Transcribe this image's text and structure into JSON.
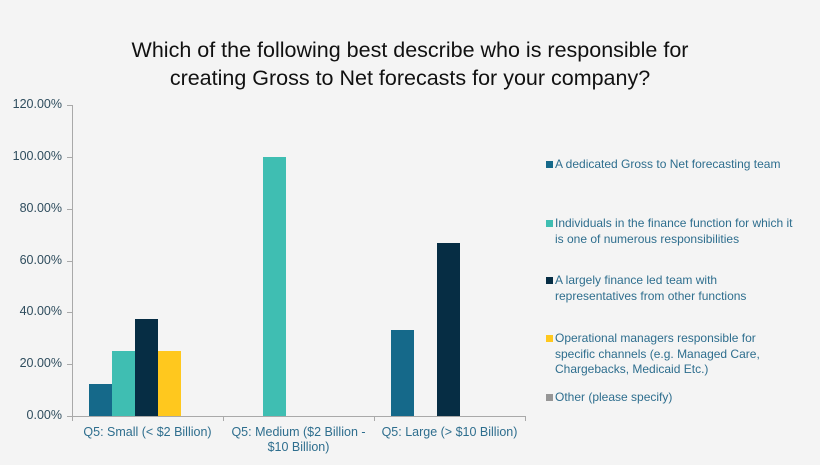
{
  "title": "Which of the following best describe who is responsible for creating Gross to Net forecasts for your company?",
  "title_lines": [
    "Which of the following best describe who is responsible for",
    "creating Gross to Net forecasts for your company?"
  ],
  "colors": {
    "background": "#f4f4f4",
    "series": [
      "#15698a",
      "#3fbeb2",
      "#062d44",
      "#ffc81e",
      "#969696"
    ],
    "label_text": "#2e6e8e",
    "axis": "#a9a9a9"
  },
  "y_ticks": [
    "0.00%",
    "20.00%",
    "40.00%",
    "60.00%",
    "80.00%",
    "100.00%",
    "120.00%"
  ],
  "x_labels": [
    "Q5: Small (< $2 Billion)",
    "Q5: Medium ($2 Billion - $10 Billion)",
    "Q5: Large (> $10 Billion)"
  ],
  "x_label_lines": [
    [
      "Q5: Small (< $2 Billion)"
    ],
    [
      "Q5: Medium ($2 Billion -",
      "$10 Billion)"
    ],
    [
      "Q5: Large (> $10 Billion)"
    ]
  ],
  "legend": [
    {
      "label": "A dedicated Gross to Net forecasting team",
      "lines": [
        "A dedicated Gross to Net forecasting team"
      ]
    },
    {
      "label": "Individuals in the finance function for which it is one of numerous responsibilities",
      "lines": [
        "Individuals in the finance function for which it",
        "is one of numerous responsibilities"
      ]
    },
    {
      "label": "A largely finance led team with representatives from other functions",
      "lines": [
        "A largely finance led team with",
        "representatives from other functions"
      ]
    },
    {
      "label": "Operational managers responsible for specific channels (e.g. Managed Care, Chargebacks, Medicaid Etc.)",
      "lines": [
        "Operational managers responsible for",
        "specific channels (e.g. Managed Care,",
        "Chargebacks, Medicaid Etc.)"
      ]
    },
    {
      "label": "Other (please specify)",
      "lines": [
        "Other (please specify)"
      ]
    }
  ],
  "chart_data": {
    "type": "bar",
    "title": "Which of the following best describe who is responsible for creating Gross to Net forecasts for your company?",
    "categories": [
      "Q5: Small (< $2 Billion)",
      "Q5: Medium ($2 Billion - $10 Billion)",
      "Q5: Large (> $10 Billion)"
    ],
    "series": [
      {
        "name": "A dedicated Gross to Net forecasting team",
        "values": [
          12.5,
          0,
          33.33
        ]
      },
      {
        "name": "Individuals in the finance function for which it is one of numerous responsibilities",
        "values": [
          25.0,
          100.0,
          0
        ]
      },
      {
        "name": "A largely finance led team with representatives from other functions",
        "values": [
          37.5,
          0,
          66.67
        ]
      },
      {
        "name": "Operational managers responsible for specific channels (e.g. Managed Care, Chargebacks, Medicaid Etc.)",
        "values": [
          25.0,
          0,
          0
        ]
      },
      {
        "name": "Other (please specify)",
        "values": [
          0,
          0,
          0
        ]
      }
    ],
    "xlabel": "",
    "ylabel": "",
    "ylim": [
      0,
      120
    ],
    "y_tick_format": "percent_2dp",
    "grid": false,
    "legend_position": "right"
  }
}
